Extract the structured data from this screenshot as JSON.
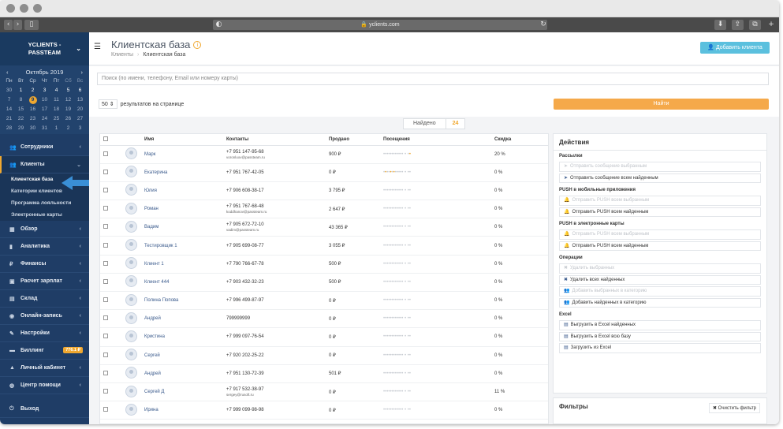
{
  "browser": {
    "url": "yclients.com"
  },
  "sidebar": {
    "brand": "YCLIENTS -\nPASSTEAM",
    "calendar": {
      "month": "Октябрь 2019",
      "weekdays": [
        "Пн",
        "Вт",
        "Ср",
        "Чт",
        "Пт",
        "Сб",
        "Вс"
      ],
      "days": [
        [
          "30",
          "1",
          "2",
          "3",
          "4",
          "5",
          "6"
        ],
        [
          "7",
          "8",
          "9",
          "10",
          "11",
          "12",
          "13"
        ],
        [
          "14",
          "15",
          "16",
          "17",
          "18",
          "19",
          "20"
        ],
        [
          "21",
          "22",
          "23",
          "24",
          "25",
          "26",
          "27"
        ],
        [
          "28",
          "29",
          "30",
          "31",
          "1",
          "2",
          "3"
        ]
      ],
      "selected": "9"
    },
    "nav": [
      {
        "label": "Сотрудники",
        "icon": "users-icon"
      },
      {
        "label": "Клиенты",
        "icon": "clients-icon",
        "active": true
      },
      {
        "label": "Обзор",
        "icon": "grid-icon"
      },
      {
        "label": "Аналитика",
        "icon": "chart-icon"
      },
      {
        "label": "Финансы",
        "icon": "ruble-icon"
      },
      {
        "label": "Расчет зарплат",
        "icon": "payroll-icon"
      },
      {
        "label": "Склад",
        "icon": "warehouse-icon"
      },
      {
        "label": "Онлайн-запись",
        "icon": "globe-icon"
      },
      {
        "label": "Настройки",
        "icon": "wrench-icon"
      },
      {
        "label": "Биллинг",
        "icon": "billing-icon",
        "badge": "776.1 ₽"
      },
      {
        "label": "Личный кабинет",
        "icon": "user-icon"
      },
      {
        "label": "Центр помощи",
        "icon": "help-icon"
      },
      {
        "label": "Выход",
        "icon": "exit-icon"
      }
    ],
    "sub": [
      "Клиентская база",
      "Категории клиентов",
      "Программа лояльности",
      "Электронные карты"
    ]
  },
  "header": {
    "title": "Клиентская база",
    "crumb_root": "Клиенты",
    "crumb_current": "Клиентская база",
    "add_button": "Добавить клиента"
  },
  "search": {
    "placeholder": "Поиск (по имени, телефону, Email или номеру карты)"
  },
  "controls": {
    "per_page": "50",
    "per_page_label": "результатов на странице",
    "find_button": "Найти"
  },
  "found": {
    "label": "Найдено",
    "count": "24"
  },
  "table": {
    "columns": [
      "Имя",
      "Контакты",
      "Продано",
      "Посещения",
      "Скидка"
    ],
    "rows": [
      {
        "name": "Марк",
        "phone": "+7 951 147-95-68",
        "email": "voronluov@passteam.ru",
        "sold": "900 ₽",
        "visits": "••••••••••••  •  ••",
        "orange": [
          14
        ],
        "discount": "20 %"
      },
      {
        "name": "Екатерина",
        "phone": "+7 951 767-42-05",
        "email": "",
        "sold": "0 ₽",
        "visits": "••••••••••••  •  ••",
        "orange": [
          1,
          4,
          6
        ],
        "discount": "0 %"
      },
      {
        "name": "Юлия",
        "phone": "+7 906 608-38-17",
        "email": "",
        "sold": "3 795 ₽",
        "visits": "••••••••••••  •  ••",
        "orange": [],
        "discount": "0 %"
      },
      {
        "name": "Роман",
        "phone": "+7 951 767-68-48",
        "email": "koddhanov@passteam.ru",
        "sold": "2 647 ₽",
        "visits": "••••••••••••  •  ••",
        "orange": [],
        "discount": "0 %"
      },
      {
        "name": "Вадим",
        "phone": "+7 905 672-72-10",
        "email": "vadim@passteam.ru",
        "sold": "43 365 ₽",
        "visits": "••••••••••••  •  ••",
        "orange": [],
        "discount": "0 %"
      },
      {
        "name": "Тестировщик 1",
        "phone": "+7 905 699-08-77",
        "email": "",
        "sold": "3 055 ₽",
        "visits": "••••••••••••  •  ••",
        "orange": [],
        "discount": "0 %"
      },
      {
        "name": "Клиент 1",
        "phone": "+7 790 766-67-78",
        "email": "",
        "sold": "500 ₽",
        "visits": "••••••••••••  •  ••",
        "orange": [],
        "discount": "0 %"
      },
      {
        "name": "Клиент 444",
        "phone": "+7 903 432-32-23",
        "email": "",
        "sold": "500 ₽",
        "visits": "••••••••••••  •  ••",
        "orange": [],
        "discount": "0 %"
      },
      {
        "name": "Полина Попова",
        "phone": "+7 996 499-87-97",
        "email": "",
        "sold": "0 ₽",
        "visits": "••••••••••••  •  ••",
        "orange": [],
        "discount": "0 %"
      },
      {
        "name": "Андрей",
        "phone": "799999999",
        "email": "",
        "sold": "0 ₽",
        "visits": "••••••••••••  •  ••",
        "orange": [],
        "discount": "0 %"
      },
      {
        "name": "Кристина",
        "phone": "+7 999 097-76-54",
        "email": "",
        "sold": "0 ₽",
        "visits": "••••••••••••  •  ••",
        "orange": [],
        "discount": "0 %"
      },
      {
        "name": "Сергей",
        "phone": "+7 920 202-25-22",
        "email": "",
        "sold": "0 ₽",
        "visits": "••••••••••••  •  ••",
        "orange": [],
        "discount": "0 %"
      },
      {
        "name": "Андрей",
        "phone": "+7 951 130-72-39",
        "email": "",
        "sold": "501 ₽",
        "visits": "••••••••••••  •  ••",
        "orange": [],
        "discount": "0 %"
      },
      {
        "name": "Сергей Д",
        "phone": "+7 917 532-38-97",
        "email": "sergey@rusoft.ru",
        "sold": "0 ₽",
        "visits": "••••••••••••  •  ••",
        "orange": [],
        "discount": "11 %"
      },
      {
        "name": "Ирина",
        "phone": "+7 999 099-98-98",
        "email": "",
        "sold": "0 ₽",
        "visits": "••••••••••••  •  ••",
        "orange": [],
        "discount": "0 %"
      }
    ]
  },
  "actions": {
    "title": "Действия",
    "sections": [
      {
        "title": "Рассылки",
        "buttons": [
          {
            "label": "Отправить сообщение выбранным",
            "disabled": true,
            "icon": "send-icon"
          },
          {
            "label": "Отправить сообщение всем найденным",
            "disabled": false,
            "icon": "send-icon"
          }
        ]
      },
      {
        "title": "PUSH в мобильные приложения",
        "buttons": [
          {
            "label": "Отправить PUSH всем выбранным",
            "disabled": true,
            "icon": "bell-icon"
          },
          {
            "label": "Отправить PUSH всем найденным",
            "disabled": false,
            "icon": "bell-icon"
          }
        ]
      },
      {
        "title": "PUSH в электронные карты",
        "buttons": [
          {
            "label": "Отправить PUSH всем выбранным",
            "disabled": true,
            "icon": "bell-icon"
          },
          {
            "label": "Отправить PUSH всем найденным",
            "disabled": false,
            "icon": "bell-icon"
          }
        ]
      },
      {
        "title": "Операции",
        "buttons": [
          {
            "label": "Удалить выбранных",
            "disabled": true,
            "icon": "trash-icon"
          },
          {
            "label": "Удалить всех найденных",
            "disabled": false,
            "icon": "trash-icon"
          },
          {
            "label": "Добавить выбранных в категорию",
            "disabled": true,
            "icon": "group-icon"
          },
          {
            "label": "Добавить найденных в категорию",
            "disabled": false,
            "icon": "group-icon"
          }
        ]
      },
      {
        "title": "Excel",
        "buttons": [
          {
            "label": "Выгрузить в Excel найденных",
            "disabled": false,
            "icon": "file-icon"
          },
          {
            "label": "Выгрузить в Excel всю базу",
            "disabled": false,
            "icon": "file-icon"
          },
          {
            "label": "Загрузить из Excel",
            "disabled": false,
            "icon": "file-icon"
          }
        ]
      }
    ]
  },
  "filters": {
    "title": "Фильтры",
    "clear_button": "Очистить фильтр"
  }
}
